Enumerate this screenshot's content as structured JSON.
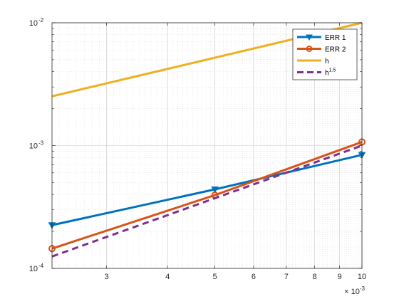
{
  "chart_data": {
    "type": "line",
    "x_scale": "log",
    "y_scale": "log",
    "xlim": [
      0.00232,
      0.01
    ],
    "ylim": [
      0.0001,
      0.01
    ],
    "grid": true,
    "minor_grid": true,
    "legend_position": "top-right",
    "x_tick_labels": [
      "3",
      "4",
      "5",
      "6",
      "7",
      "8",
      "9",
      "10"
    ],
    "x_tick_values": [
      0.003,
      0.004,
      0.005,
      0.006,
      0.007,
      0.008,
      0.009,
      0.01
    ],
    "x_exponent_label": "× 10",
    "x_exponent_power": "-3",
    "y_ticks": [
      {
        "value": 0.01,
        "base": "10",
        "exp": "-2"
      },
      {
        "value": 0.001,
        "base": "10",
        "exp": "-3"
      },
      {
        "value": 0.0001,
        "base": "10",
        "exp": "-4"
      }
    ],
    "series": [
      {
        "name": "ERR 1",
        "color": "#0072BD",
        "style": "solid",
        "marker": "triangle-down",
        "x": [
          0.00232,
          0.005,
          0.01
        ],
        "y": [
          0.000225,
          0.00044,
          0.00084
        ]
      },
      {
        "name": "ERR 2",
        "color": "#D95319",
        "style": "solid",
        "marker": "circle",
        "x": [
          0.00232,
          0.005,
          0.01
        ],
        "y": [
          0.000145,
          0.000395,
          0.00107
        ]
      },
      {
        "name": "h",
        "color": "#EDB120",
        "style": "solid",
        "marker": "none",
        "x": [
          0.00232,
          0.01
        ],
        "y": [
          0.00252,
          0.01
        ]
      },
      {
        "name": "h",
        "name_sup": "1.5",
        "color": "#7E2F8E",
        "style": "dashed",
        "marker": "none",
        "x": [
          0.00232,
          0.01
        ],
        "y": [
          0.000125,
          0.001
        ]
      }
    ]
  }
}
